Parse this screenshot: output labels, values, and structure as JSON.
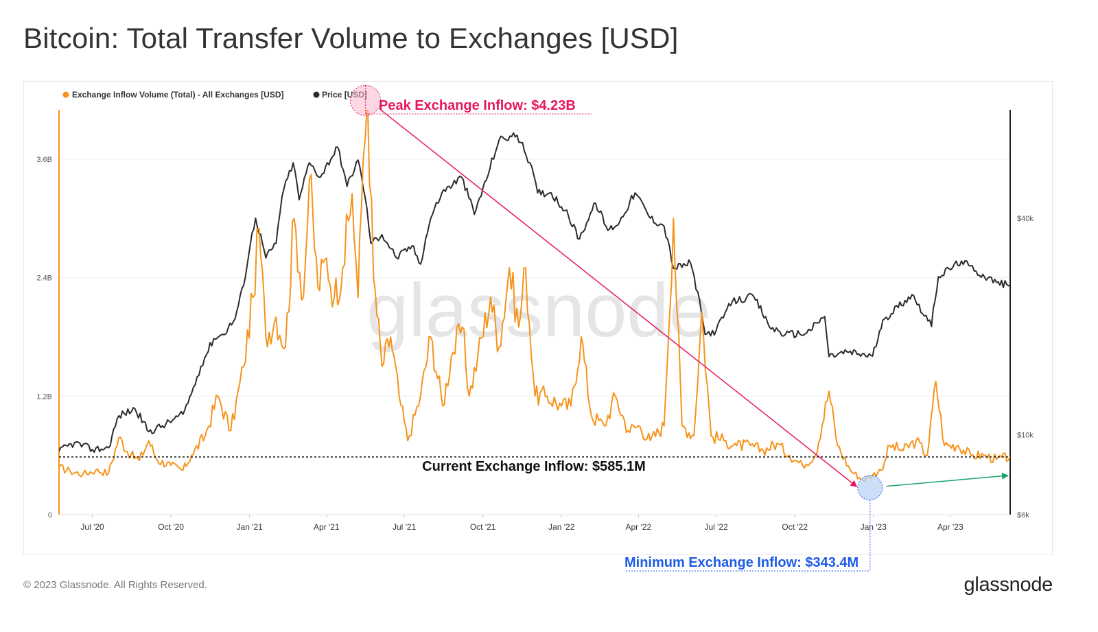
{
  "title": "Bitcoin: Total Transfer Volume to Exchanges [USD]",
  "footer": {
    "copyright": "© 2023 Glassnode. All Rights Reserved.",
    "logo": "glassnode"
  },
  "watermark": "glassnode",
  "colors": {
    "inflow": "#f7931a",
    "price": "#2b2b2b",
    "peak": "#e6175c",
    "min": "#1e5be6",
    "trend": "#16a36a"
  },
  "chart_data": {
    "type": "line",
    "legend": [
      {
        "name": "Exchange Inflow Volume (Total) - All Exchanges [USD]",
        "color": "#f7931a"
      },
      {
        "name": "Price [USD]",
        "color": "#2b2b2b"
      }
    ],
    "legend_position": "top-left",
    "x_range": [
      "2020-05-23",
      "2023-06-10"
    ],
    "x_ticks": [
      "Jul '20",
      "Oct '20",
      "Jan '21",
      "Apr '21",
      "Jul '21",
      "Oct '21",
      "Jan '22",
      "Apr '22",
      "Jul '22",
      "Oct '22",
      "Jan '23",
      "Apr '23"
    ],
    "y_left": {
      "ticks": [
        "0",
        "1.2B",
        "2.4B",
        "3.6B"
      ],
      "values": [
        0,
        1.2,
        2.4,
        3.6
      ],
      "unit": "B USD",
      "range": [
        0,
        4.1
      ]
    },
    "y_right": {
      "ticks": [
        "$6k",
        "$10k",
        "$40k"
      ],
      "values": [
        6000,
        10000,
        40000
      ],
      "scale": "log",
      "range": [
        6000,
        80000
      ]
    },
    "grid": true,
    "series": [
      {
        "name": "Exchange Inflow Volume (Total) - All Exchanges [USD]",
        "axis": "left",
        "unit": "B USD",
        "points": [
          [
            "2020-05-23",
            0.48
          ],
          [
            "2020-06-05",
            0.44
          ],
          [
            "2020-06-20",
            0.41
          ],
          [
            "2020-07-05",
            0.45
          ],
          [
            "2020-07-20",
            0.42
          ],
          [
            "2020-08-01",
            0.78
          ],
          [
            "2020-08-15",
            0.6
          ],
          [
            "2020-08-25",
            0.55
          ],
          [
            "2020-09-05",
            0.75
          ],
          [
            "2020-09-15",
            0.55
          ],
          [
            "2020-10-01",
            0.5
          ],
          [
            "2020-10-15",
            0.45
          ],
          [
            "2020-10-25",
            0.6
          ],
          [
            "2020-11-10",
            0.8
          ],
          [
            "2020-11-25",
            1.2
          ],
          [
            "2020-12-10",
            0.85
          ],
          [
            "2020-12-25",
            1.5
          ],
          [
            "2021-01-05",
            2.2
          ],
          [
            "2021-01-12",
            2.9
          ],
          [
            "2021-01-20",
            1.8
          ],
          [
            "2021-02-01",
            2.0
          ],
          [
            "2021-02-12",
            1.7
          ],
          [
            "2021-02-22",
            3.0
          ],
          [
            "2021-03-05",
            2.2
          ],
          [
            "2021-03-12",
            3.4
          ],
          [
            "2021-03-22",
            2.3
          ],
          [
            "2021-04-01",
            2.6
          ],
          [
            "2021-04-10",
            2.2
          ],
          [
            "2021-04-20",
            2.5
          ],
          [
            "2021-05-01",
            3.25
          ],
          [
            "2021-05-08",
            2.2
          ],
          [
            "2021-05-14",
            3.6
          ],
          [
            "2021-05-19",
            4.23
          ],
          [
            "2021-05-26",
            2.4
          ],
          [
            "2021-06-05",
            1.5
          ],
          [
            "2021-06-15",
            1.8
          ],
          [
            "2021-06-25",
            1.2
          ],
          [
            "2021-07-05",
            0.75
          ],
          [
            "2021-07-20",
            1.2
          ],
          [
            "2021-08-01",
            1.8
          ],
          [
            "2021-08-15",
            1.1
          ],
          [
            "2021-08-25",
            1.6
          ],
          [
            "2021-09-07",
            1.9
          ],
          [
            "2021-09-15",
            1.2
          ],
          [
            "2021-09-25",
            1.6
          ],
          [
            "2021-10-10",
            2.2
          ],
          [
            "2021-10-20",
            1.7
          ],
          [
            "2021-11-01",
            2.5
          ],
          [
            "2021-11-12",
            1.9
          ],
          [
            "2021-11-20",
            2.5
          ],
          [
            "2021-12-01",
            1.2
          ],
          [
            "2021-12-15",
            1.2
          ],
          [
            "2022-01-01",
            1.1
          ],
          [
            "2022-01-12",
            1.1
          ],
          [
            "2022-01-24",
            1.8
          ],
          [
            "2022-02-05",
            1.0
          ],
          [
            "2022-02-20",
            0.9
          ],
          [
            "2022-03-05",
            1.2
          ],
          [
            "2022-03-20",
            0.85
          ],
          [
            "2022-04-01",
            0.9
          ],
          [
            "2022-04-15",
            0.75
          ],
          [
            "2022-05-01",
            0.9
          ],
          [
            "2022-05-12",
            3.0
          ],
          [
            "2022-05-22",
            0.9
          ],
          [
            "2022-06-05",
            0.8
          ],
          [
            "2022-06-14",
            2.05
          ],
          [
            "2022-06-25",
            0.8
          ],
          [
            "2022-07-10",
            0.75
          ],
          [
            "2022-07-25",
            0.7
          ],
          [
            "2022-08-10",
            0.7
          ],
          [
            "2022-08-25",
            0.65
          ],
          [
            "2022-09-10",
            0.72
          ],
          [
            "2022-09-25",
            0.6
          ],
          [
            "2022-10-10",
            0.5
          ],
          [
            "2022-10-25",
            0.6
          ],
          [
            "2022-11-10",
            1.25
          ],
          [
            "2022-11-20",
            0.7
          ],
          [
            "2022-12-05",
            0.45
          ],
          [
            "2022-12-20",
            0.35
          ],
          [
            "2022-12-31",
            0.4
          ],
          [
            "2023-01-10",
            0.45
          ],
          [
            "2023-01-20",
            0.7
          ],
          [
            "2023-02-05",
            0.65
          ],
          [
            "2023-02-20",
            0.75
          ],
          [
            "2023-03-05",
            0.6
          ],
          [
            "2023-03-15",
            1.35
          ],
          [
            "2023-03-25",
            0.7
          ],
          [
            "2023-04-10",
            0.7
          ],
          [
            "2023-04-25",
            0.6
          ],
          [
            "2023-05-10",
            0.6
          ],
          [
            "2023-05-25",
            0.56
          ],
          [
            "2023-06-10",
            0.585
          ]
        ]
      },
      {
        "name": "Price [USD]",
        "axis": "right",
        "unit": "USD",
        "points": [
          [
            "2020-05-23",
            9000
          ],
          [
            "2020-06-10",
            9500
          ],
          [
            "2020-07-01",
            9100
          ],
          [
            "2020-07-20",
            9200
          ],
          [
            "2020-08-01",
            11300
          ],
          [
            "2020-08-20",
            11800
          ],
          [
            "2020-09-05",
            10200
          ],
          [
            "2020-09-25",
            10700
          ],
          [
            "2020-10-15",
            11400
          ],
          [
            "2020-10-25",
            13000
          ],
          [
            "2020-11-05",
            15500
          ],
          [
            "2020-11-20",
            18500
          ],
          [
            "2020-12-01",
            19000
          ],
          [
            "2020-12-15",
            21000
          ],
          [
            "2020-12-25",
            26000
          ],
          [
            "2021-01-08",
            40000
          ],
          [
            "2021-01-20",
            31000
          ],
          [
            "2021-02-01",
            34000
          ],
          [
            "2021-02-08",
            46000
          ],
          [
            "2021-02-21",
            57000
          ],
          [
            "2021-02-28",
            45000
          ],
          [
            "2021-03-12",
            57000
          ],
          [
            "2021-03-25",
            52000
          ],
          [
            "2021-04-14",
            63000
          ],
          [
            "2021-04-25",
            49000
          ],
          [
            "2021-05-08",
            58000
          ],
          [
            "2021-05-16",
            46000
          ],
          [
            "2021-05-23",
            34000
          ],
          [
            "2021-06-05",
            36000
          ],
          [
            "2021-06-22",
            31000
          ],
          [
            "2021-07-10",
            33500
          ],
          [
            "2021-07-20",
            29800
          ],
          [
            "2021-08-01",
            40000
          ],
          [
            "2021-08-14",
            47000
          ],
          [
            "2021-09-06",
            52000
          ],
          [
            "2021-09-21",
            41000
          ],
          [
            "2021-10-05",
            51000
          ],
          [
            "2021-10-20",
            66000
          ],
          [
            "2021-11-10",
            68000
          ],
          [
            "2021-11-25",
            57000
          ],
          [
            "2021-12-04",
            47000
          ],
          [
            "2021-12-20",
            47000
          ],
          [
            "2022-01-05",
            42000
          ],
          [
            "2022-01-22",
            35000
          ],
          [
            "2022-02-10",
            44000
          ],
          [
            "2022-02-24",
            37000
          ],
          [
            "2022-03-10",
            39000
          ],
          [
            "2022-03-28",
            47000
          ],
          [
            "2022-04-15",
            40000
          ],
          [
            "2022-05-01",
            38000
          ],
          [
            "2022-05-12",
            29000
          ],
          [
            "2022-06-01",
            30000
          ],
          [
            "2022-06-18",
            19000
          ],
          [
            "2022-07-01",
            19500
          ],
          [
            "2022-07-20",
            23500
          ],
          [
            "2022-08-14",
            24200
          ],
          [
            "2022-09-01",
            20000
          ],
          [
            "2022-09-20",
            19000
          ],
          [
            "2022-10-15",
            19200
          ],
          [
            "2022-11-05",
            21300
          ],
          [
            "2022-11-10",
            16500
          ],
          [
            "2022-12-01",
            17000
          ],
          [
            "2022-12-31",
            16550
          ],
          [
            "2023-01-14",
            21000
          ],
          [
            "2023-02-15",
            24500
          ],
          [
            "2023-03-10",
            20000
          ],
          [
            "2023-03-18",
            27500
          ],
          [
            "2023-04-14",
            30400
          ],
          [
            "2023-05-01",
            28500
          ],
          [
            "2023-05-25",
            26500
          ],
          [
            "2023-06-10",
            26000
          ]
        ]
      }
    ],
    "annotations": [
      {
        "text": "Peak Exchange Inflow: $4.23B",
        "date": "2021-05-19",
        "value": 4.23,
        "color": "#e6175c"
      },
      {
        "text": "Current Exchange Inflow: $585.1M",
        "value": 0.585,
        "color": "#111111"
      },
      {
        "text": "Minimum Exchange Inflow: $343.4M",
        "date": "2022-12-20",
        "value": 0.343,
        "color": "#1e5be6"
      }
    ]
  }
}
